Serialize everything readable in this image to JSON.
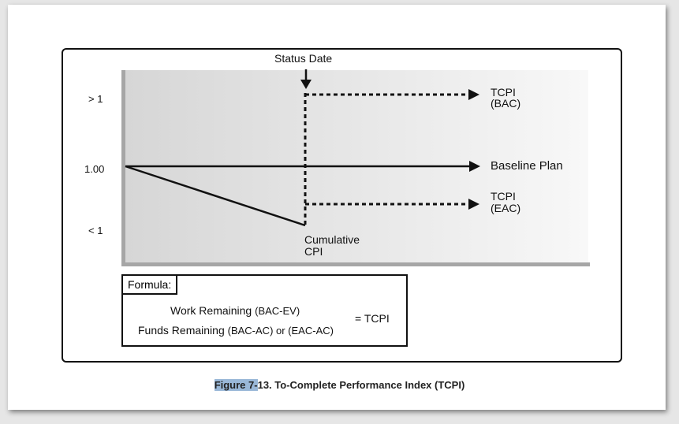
{
  "diagram": {
    "status_date_label": "Status Date",
    "y_labels": {
      "top": "> 1",
      "mid": "1.00",
      "bottom": "< 1"
    },
    "tcpi_bac": {
      "line1": "TCPI",
      "line2": "(BAC)"
    },
    "baseline_label": "Baseline Plan",
    "tcpi_eac": {
      "line1": "TCPI",
      "line2": "(EAC)"
    },
    "cumulative_cpi": {
      "line1": "Cumulative",
      "line2": "CPI"
    }
  },
  "formula": {
    "label": "Formula:",
    "numerator_main": "Work Remaining",
    "numerator_paren": "(BAC-EV)",
    "denominator_main": "Funds Remaining",
    "denominator_paren": "(BAC-AC) or (EAC-AC)",
    "result": "= TCPI"
  },
  "caption": {
    "highlight": "Figure 7-",
    "rest": "13. To-Complete Performance Index (TCPI)"
  },
  "colors": {
    "plot_gradient_start": "#d6d6d6",
    "plot_gradient_end": "#f8f8f8",
    "axis": "#a6a6a6",
    "caption_highlight": "#9ab8d8"
  }
}
